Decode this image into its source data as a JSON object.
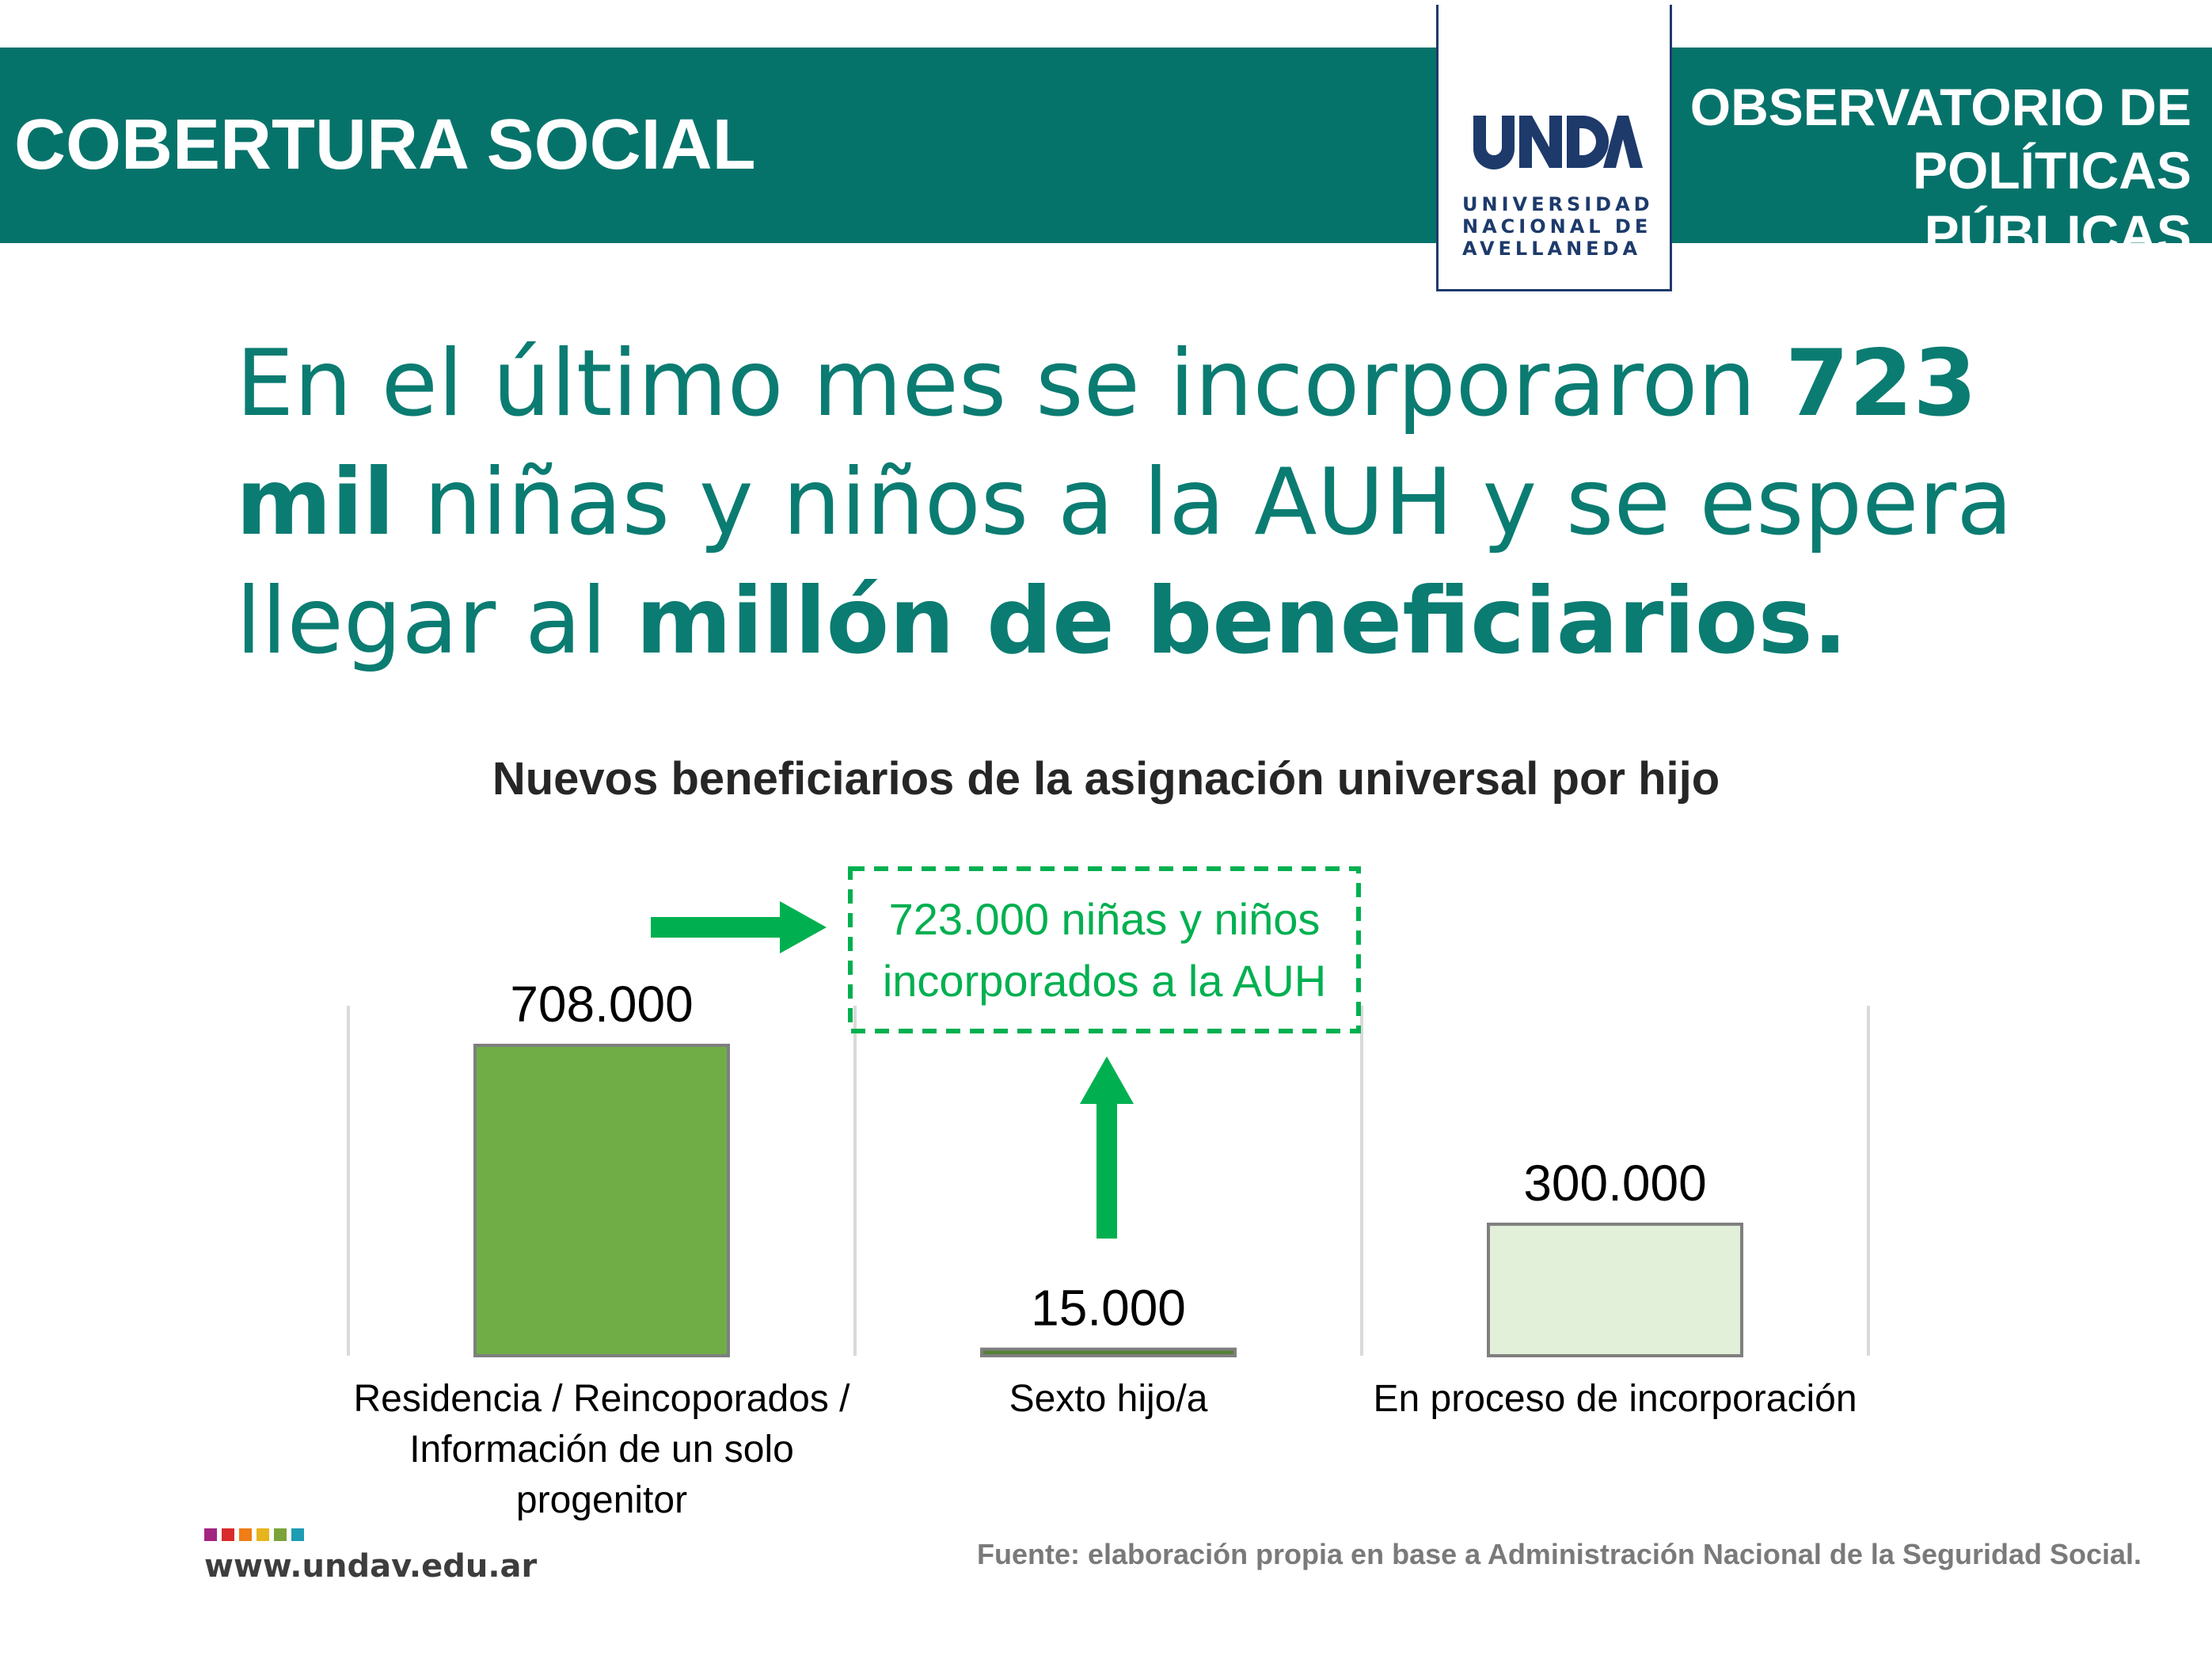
{
  "header": {
    "section_title": "COBERTURA SOCIAL",
    "right_line1": "OBSERVATORIO DE",
    "right_line2": "POLÍTICAS PÚBLICAS",
    "logo_line1": "UNIVERSIDAD",
    "logo_line2": "NACIONAL DE",
    "logo_line3": "AVELLANEDA",
    "logo_wordmark": "UNDAV"
  },
  "headline": {
    "part1": "En el último mes se incorporaron ",
    "bold1": "723 mil",
    "part2": " niñas y niños a la AUH y se espera llegar al ",
    "bold2": "millón de beneficiarios."
  },
  "chart_data": {
    "type": "bar",
    "title": "Nuevos beneficiarios de la asignación universal por hijo",
    "categories": [
      "Residencia / Reincoporados / Información de un solo progenitor",
      "Sexto hijo/a",
      "En proceso de incorporación"
    ],
    "category_lines": [
      [
        "Residencia / Reincoporados /",
        "Información de un solo",
        "progenitor"
      ],
      [
        "Sexto hijo/a"
      ],
      [
        "En proceso de incorporación"
      ]
    ],
    "values": [
      708000,
      15000,
      300000
    ],
    "value_labels": [
      "708.000",
      "15.000",
      "300.000"
    ],
    "colors": [
      "#70ad47",
      "#548235",
      "#e2efd9"
    ],
    "ylim": [
      0,
      708000
    ],
    "grid": true,
    "annotation": {
      "line1": "723.000 niñas y niños",
      "line2": "incorporados a la AUH",
      "color": "#00b050"
    }
  },
  "footer": {
    "url": "www.undav.edu.ar",
    "source": "Fuente: elaboración propia en base a Administración Nacional de la Seguridad Social.",
    "dot_colors": [
      "#a3257f",
      "#d92b2b",
      "#f07d16",
      "#e8b41c",
      "#7aa33a",
      "#1e9cb3"
    ]
  },
  "colors": {
    "brand_teal": "#06736b",
    "headline_teal": "#0b7c72",
    "logo_navy": "#1d3a6b"
  }
}
